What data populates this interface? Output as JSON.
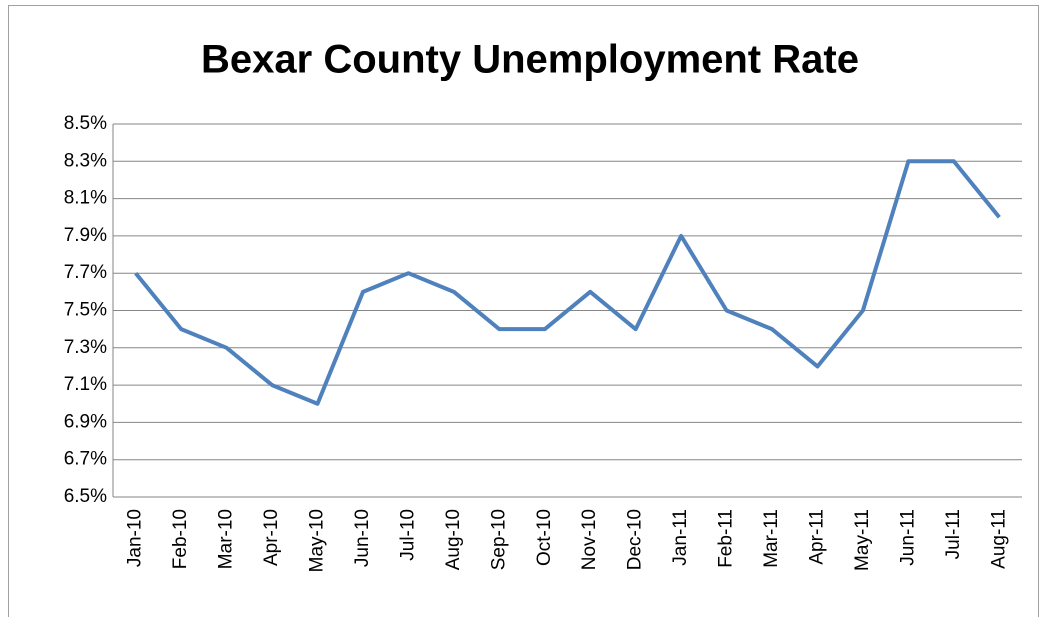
{
  "chart_data": {
    "type": "line",
    "title": "Bexar County Unemployment Rate",
    "categories": [
      "Jan-10",
      "Feb-10",
      "Mar-10",
      "Apr-10",
      "May-10",
      "Jun-10",
      "Jul-10",
      "Aug-10",
      "Sep-10",
      "Oct-10",
      "Nov-10",
      "Dec-10",
      "Jan-11",
      "Feb-11",
      "Mar-11",
      "Apr-11",
      "May-11",
      "Jun-11",
      "Jul-11",
      "Aug-11"
    ],
    "values": [
      7.7,
      7.4,
      7.3,
      7.1,
      7.0,
      7.6,
      7.7,
      7.6,
      7.4,
      7.4,
      7.6,
      7.4,
      7.9,
      7.5,
      7.4,
      7.2,
      7.5,
      8.3,
      8.3,
      8.0
    ],
    "color": "#4f81bd",
    "ylim": [
      6.5,
      8.5
    ],
    "yticks": [
      {
        "value": 6.5,
        "label": "6.5%"
      },
      {
        "value": 6.7,
        "label": "6.7%"
      },
      {
        "value": 6.9,
        "label": "6.9%"
      },
      {
        "value": 7.1,
        "label": "7.1%"
      },
      {
        "value": 7.3,
        "label": "7.3%"
      },
      {
        "value": 7.5,
        "label": "7.5%"
      },
      {
        "value": 7.7,
        "label": "7.7%"
      },
      {
        "value": 7.9,
        "label": "7.9%"
      },
      {
        "value": 8.1,
        "label": "8.1%"
      },
      {
        "value": 8.3,
        "label": "8.3%"
      },
      {
        "value": 8.5,
        "label": "8.5%"
      }
    ],
    "grid": true
  }
}
